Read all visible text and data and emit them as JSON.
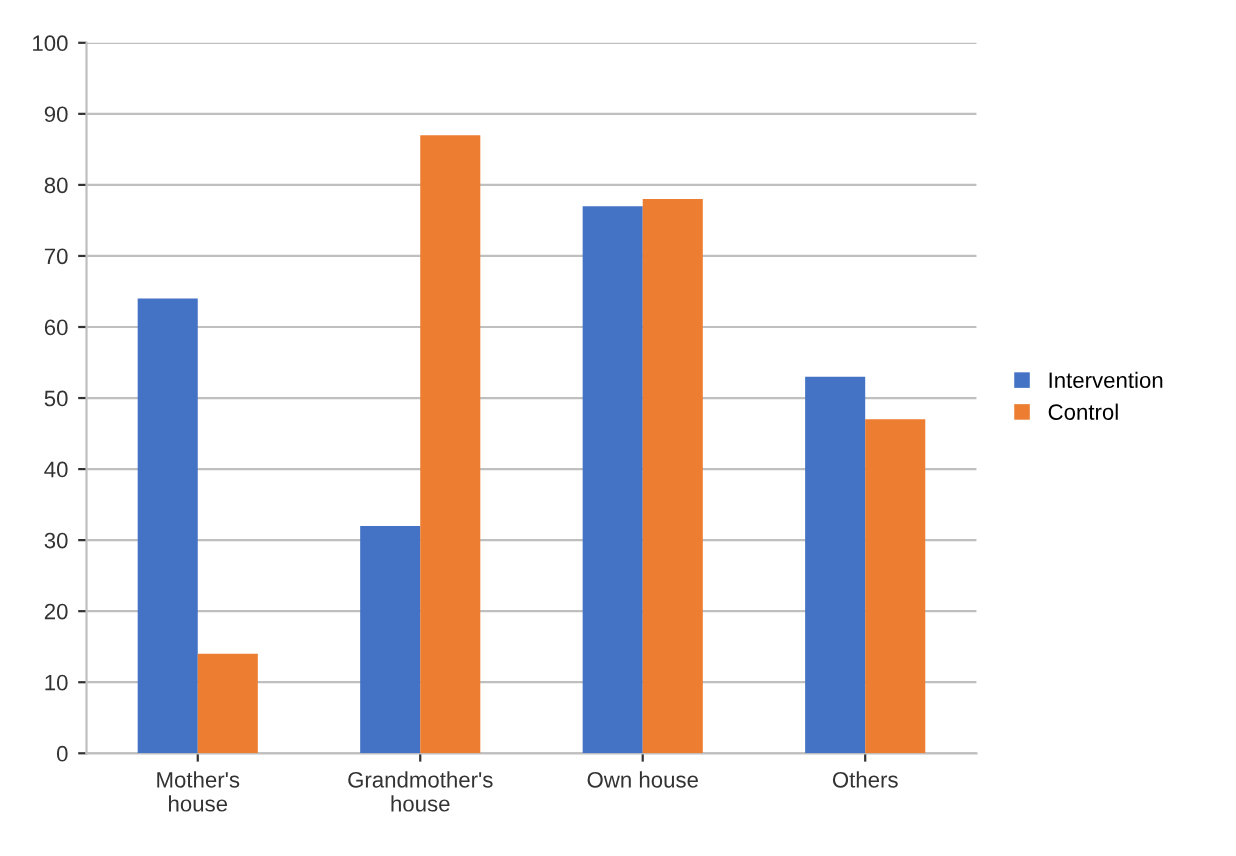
{
  "chart_data": {
    "type": "bar",
    "categories": [
      "Mother's\nhouse",
      "Grandmother's\nhouse",
      "Own house",
      "Others"
    ],
    "series": [
      {
        "name": "Intervention",
        "color": "#4472c4",
        "values": [
          64,
          32,
          77,
          53
        ]
      },
      {
        "name": "Control",
        "color": "#ed7d31",
        "values": [
          14,
          87,
          78,
          47
        ]
      }
    ],
    "ylim": [
      0,
      100
    ],
    "yticks": [
      0,
      10,
      20,
      30,
      40,
      50,
      60,
      70,
      80,
      90,
      100
    ],
    "grid": "y",
    "legend": "right"
  }
}
